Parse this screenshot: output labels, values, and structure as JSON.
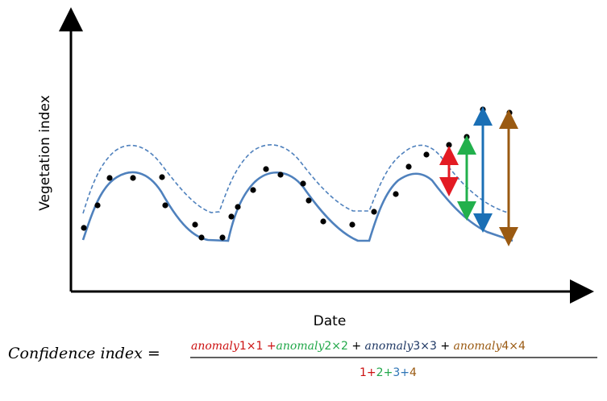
{
  "diagram": {
    "y_axis_label": "Vegetation index",
    "x_axis_label": "Date"
  },
  "formula": {
    "lhs": "Confidence index =",
    "numerator": [
      {
        "term": "anomaly",
        "weight": "1×1",
        "color": "#cc1111",
        "op": "+"
      },
      {
        "term": "anomaly",
        "weight": "2×2",
        "color": "#22a84a",
        "op": "+"
      },
      {
        "term": "anomaly",
        "weight": "3×3",
        "color": "#1f3864",
        "op": "+"
      },
      {
        "term": "anomaly",
        "weight": "4×4",
        "color": "#9a5a12",
        "op": ""
      }
    ],
    "denominator": [
      {
        "value": "1",
        "color": "#cc1111"
      },
      {
        "value": "2",
        "color": "#22a84a"
      },
      {
        "value": "3",
        "color": "#2e75b6"
      },
      {
        "value": "4",
        "color": "#9a5a12"
      }
    ],
    "plus": "+"
  },
  "colors": {
    "curve": "#4f81bd",
    "dashed_curve": "#4f81bd",
    "points": "#000000",
    "arrow1": "#e31b23",
    "arrow2": "#22b04c",
    "arrow3": "#1a6fb5",
    "arrow4": "#9a5a12"
  }
}
